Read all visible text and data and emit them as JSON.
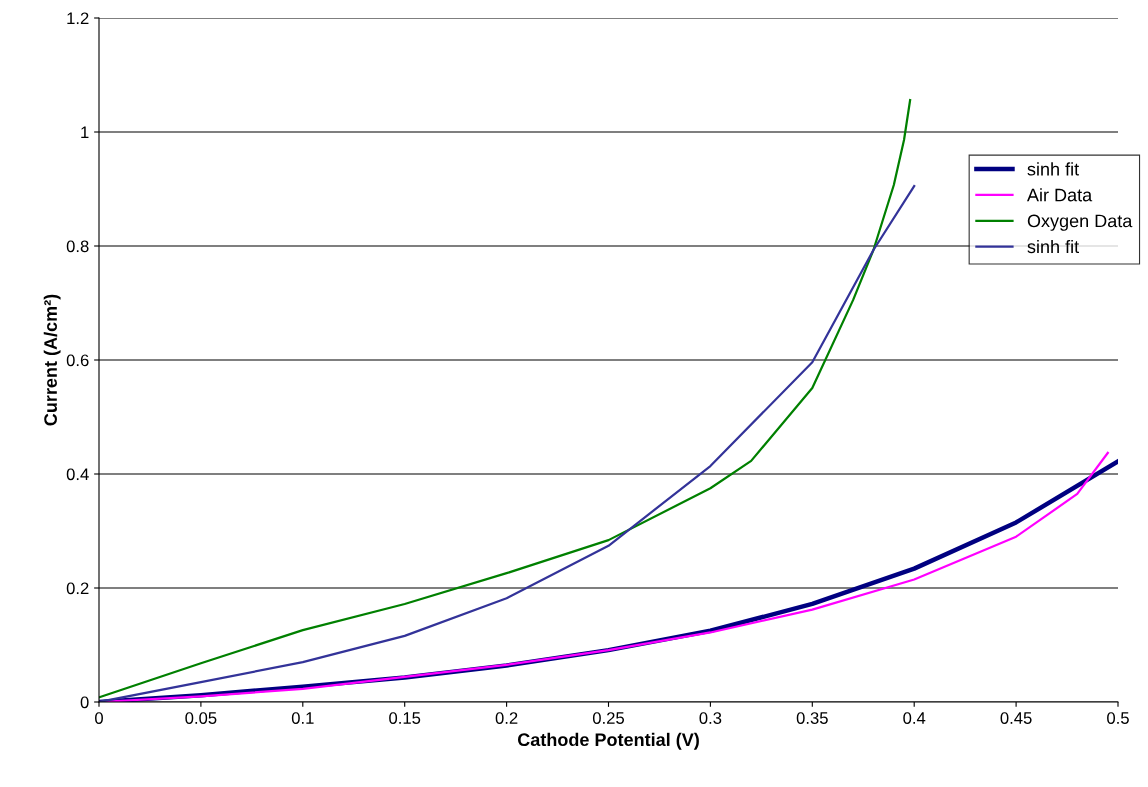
{
  "chart_data": {
    "type": "line",
    "xlabel": "Cathode Potential (V)",
    "ylabel": "Current (A/cm²)",
    "xlim": [
      0,
      0.5
    ],
    "xticks": [
      0,
      0.05,
      0.1,
      0.15,
      0.2,
      0.25,
      0.3,
      0.35,
      0.4,
      0.45,
      0.5
    ],
    "ylim": [
      0,
      1.2
    ],
    "yticks": [
      0,
      0.2,
      0.4,
      0.6,
      0.8,
      1,
      1.2
    ],
    "grid": "y",
    "legend": "right",
    "marker": "none",
    "line_style": "solid",
    "series": [
      {
        "name": "sinh fit",
        "color": "#000080",
        "x": [
          0,
          0.05,
          0.1,
          0.15,
          0.2,
          0.25,
          0.3,
          0.35,
          0.4,
          0.45,
          0.5
        ],
        "values": [
          0,
          0.012,
          0.027,
          0.043,
          0.064,
          0.091,
          0.125,
          0.172,
          0.234,
          0.315,
          0.422
        ]
      },
      {
        "name": "Air Data",
        "color": "#ff00ff",
        "x": [
          0,
          0.05,
          0.1,
          0.15,
          0.2,
          0.25,
          0.3,
          0.35,
          0.4,
          0.45,
          0.48,
          0.495
        ],
        "values": [
          0,
          0.01,
          0.023,
          0.044,
          0.065,
          0.091,
          0.122,
          0.162,
          0.215,
          0.29,
          0.365,
          0.437
        ]
      },
      {
        "name": "Oxygen Data",
        "color": "#008000",
        "x": [
          0,
          0.05,
          0.1,
          0.15,
          0.2,
          0.25,
          0.3,
          0.32,
          0.35,
          0.37,
          0.38,
          0.39,
          0.395,
          0.398
        ],
        "values": [
          0.008,
          0.068,
          0.126,
          0.172,
          0.226,
          0.284,
          0.375,
          0.423,
          0.551,
          0.705,
          0.793,
          0.907,
          0.986,
          1.056
        ]
      },
      {
        "name": "sinh fit",
        "color": "#333399",
        "x": [
          0,
          0.05,
          0.1,
          0.15,
          0.2,
          0.25,
          0.3,
          0.35,
          0.38,
          0.4
        ],
        "values": [
          0,
          0.035,
          0.07,
          0.116,
          0.182,
          0.274,
          0.414,
          0.596,
          0.793,
          0.905
        ]
      }
    ]
  }
}
